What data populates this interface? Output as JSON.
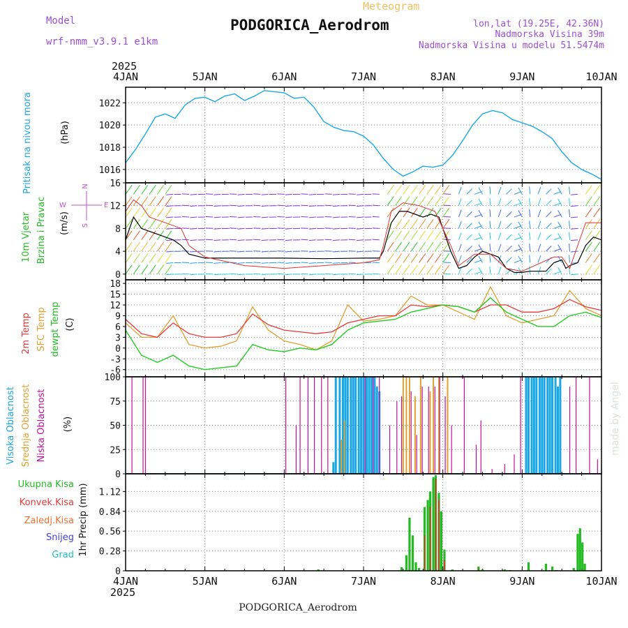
{
  "header": {
    "model_label": "Model",
    "model_name": "wrf-nmm_v3.9.1 e1km",
    "meteogram_label": "Meteogram",
    "station": "PODGORICA_Aerodrom",
    "lonlat": "lon,lat (19.25E, 42.36N)",
    "elevation": "Nadmorska Visina 39m",
    "model_elevation": "Nadmorska Visina u modelu 51.5474m"
  },
  "x_axis": {
    "year": "2025",
    "ticks": [
      "4JAN",
      "5JAN",
      "6JAN",
      "7JAN",
      "8JAN",
      "9JAN",
      "10JAN"
    ]
  },
  "footer": {
    "station": "PODGORICA_Aerodrom",
    "credit": "made by Angel"
  },
  "colors": {
    "pressure": "#1aa7e6",
    "wind_speed": "#000000",
    "gust": "#e03030",
    "t2m": "#e83838",
    "sfc": "#e0a030",
    "dewpt": "#22cc22",
    "high_cloud": "#1aa7e6",
    "mid_cloud": "#e0a030",
    "low_cloud": "#c0109a",
    "total_precip": "#22bb22",
    "conv_precip": "#e03030"
  },
  "chart_data": [
    {
      "type": "line",
      "ylabel": "Pritisak na nivou mora",
      "units": "(hPa)",
      "yticks": [
        1016,
        1018,
        1020,
        1022
      ],
      "ylim": [
        1014.8,
        1023.4
      ],
      "series": [
        {
          "name": "Pritisak na nivou mora",
          "x": [
            0,
            0.125,
            0.25,
            0.375,
            0.5,
            0.625,
            0.75,
            0.875,
            1,
            1.125,
            1.25,
            1.375,
            1.5,
            1.625,
            1.75,
            1.875,
            2,
            2.125,
            2.25,
            2.375,
            2.5,
            2.625,
            2.75,
            2.875,
            3,
            3.125,
            3.25,
            3.375,
            3.5,
            3.625,
            3.75,
            3.875,
            4,
            4.125,
            4.25,
            4.375,
            4.5,
            4.625,
            4.75,
            4.875,
            5,
            5.125,
            5.25,
            5.375,
            5.5,
            5.625,
            5.75,
            5.875,
            6
          ],
          "y": [
            1016.6,
            1017.8,
            1019.2,
            1020.7,
            1021.0,
            1020.6,
            1021.8,
            1022.4,
            1022.5,
            1022.1,
            1022.6,
            1022.8,
            1022.2,
            1022.6,
            1023.1,
            1023.0,
            1022.9,
            1022.4,
            1022.5,
            1021.6,
            1020.3,
            1019.8,
            1019.5,
            1019.4,
            1019.0,
            1018.2,
            1017.0,
            1016.0,
            1015.4,
            1015.8,
            1016.3,
            1016.2,
            1016.4,
            1017.3,
            1018.6,
            1020.0,
            1021.0,
            1021.3,
            1021.1,
            1020.5,
            1020.2,
            1019.9,
            1019.4,
            1018.8,
            1017.6,
            1016.6,
            1016.0,
            1015.6,
            1015.1
          ]
        }
      ]
    },
    {
      "type": "line",
      "ylabel": "10m Vjetar Brzina i Pravac",
      "units": "(m/s)",
      "yticks": [
        0,
        4,
        8,
        12,
        16
      ],
      "ylim": [
        -1,
        16
      ],
      "compass": {
        "n": "N",
        "s": "S",
        "e": "E",
        "w": "W"
      },
      "series": [
        {
          "name": "wind_speed",
          "x": [
            0,
            0.1,
            0.2,
            0.3,
            0.4,
            0.5,
            0.6,
            0.7,
            0.8,
            1,
            1.5,
            2,
            2.5,
            3,
            3.2,
            3.25,
            3.35,
            3.45,
            3.55,
            3.65,
            3.75,
            3.85,
            3.95,
            4.1,
            4.2,
            4.3,
            4.4,
            4.5,
            4.6,
            4.7,
            4.8,
            4.9,
            5,
            5.1,
            5.2,
            5.3,
            5.4,
            5.5,
            5.55,
            5.6,
            5.7,
            5.8,
            5.9,
            6
          ],
          "y": [
            6,
            10,
            8,
            7.5,
            7,
            6.5,
            6,
            5,
            3.5,
            2.8,
            2.8,
            2.8,
            2.7,
            2.8,
            2.8,
            4,
            9,
            11,
            11,
            10.5,
            10,
            10.5,
            10,
            4,
            1,
            1.5,
            3,
            4,
            3.5,
            3,
            1,
            0.3,
            0.3,
            0.5,
            0.5,
            0.5,
            2,
            2.5,
            1,
            1.5,
            2,
            5,
            6.5,
            6
          ]
        },
        {
          "name": "gust",
          "x": [
            0,
            0.1,
            0.2,
            0.3,
            0.5,
            0.7,
            0.8,
            1,
            1.5,
            2,
            2.5,
            3,
            3.2,
            3.25,
            3.35,
            3.5,
            3.7,
            3.9,
            4.1,
            4.2,
            4.4,
            4.6,
            4.8,
            5,
            5.4,
            5.5,
            5.6,
            5.8,
            6
          ],
          "y": [
            11,
            13,
            12,
            10,
            9,
            8,
            5,
            3,
            1.5,
            1,
            1.5,
            2,
            2.5,
            5,
            11,
            12.5,
            12,
            11,
            5,
            1.5,
            3.5,
            3.5,
            1,
            0.5,
            3,
            3,
            1,
            9,
            9
          ]
        }
      ]
    },
    {
      "type": "line",
      "ylabel": "2m Temp / SFC Temp / dewpt Temp",
      "units": "(C)",
      "yticks": [
        -6,
        -3,
        0,
        3,
        6,
        9,
        12,
        15,
        18
      ],
      "ylim": [
        -8,
        19
      ],
      "series": [
        {
          "name": "2m Temp",
          "x": [
            0,
            0.2,
            0.4,
            0.6,
            0.8,
            1,
            1.2,
            1.4,
            1.6,
            1.8,
            2,
            2.2,
            2.4,
            2.6,
            2.8,
            3,
            3.2,
            3.4,
            3.6,
            3.8,
            4,
            4.2,
            4.4,
            4.6,
            4.8,
            5,
            5.2,
            5.4,
            5.6,
            5.8,
            6
          ],
          "y": [
            8,
            4,
            3,
            7,
            4,
            3,
            3,
            4,
            9.5,
            6.5,
            5,
            4.5,
            4,
            4.5,
            7,
            8,
            9,
            9,
            12,
            11.5,
            12,
            11.5,
            10,
            12,
            12,
            10,
            10,
            11,
            13.5,
            11.5,
            10.5
          ]
        },
        {
          "name": "SFC Temp",
          "x": [
            0,
            0.2,
            0.4,
            0.6,
            0.8,
            1,
            1.2,
            1.4,
            1.6,
            1.8,
            2,
            2.2,
            2.4,
            2.6,
            2.8,
            3,
            3.2,
            3.4,
            3.6,
            3.8,
            4,
            4.2,
            4.4,
            4.6,
            4.8,
            5,
            5.2,
            5.4,
            5.6,
            5.8,
            6
          ],
          "y": [
            7,
            3,
            3,
            9,
            1,
            0,
            0.5,
            2,
            11.5,
            5,
            2,
            1,
            -0.5,
            2,
            12,
            7.5,
            8,
            9,
            14.5,
            12,
            12,
            10,
            8,
            17,
            9,
            7,
            8,
            9,
            16,
            11,
            9
          ]
        },
        {
          "name": "dewpt Temp",
          "x": [
            0,
            0.2,
            0.4,
            0.6,
            0.8,
            1,
            1.2,
            1.4,
            1.6,
            1.8,
            2,
            2.2,
            2.4,
            2.6,
            2.8,
            3,
            3.2,
            3.4,
            3.6,
            3.8,
            4,
            4.2,
            4.4,
            4.6,
            4.8,
            5,
            5.2,
            5.4,
            5.6,
            5.8,
            6
          ],
          "y": [
            5,
            -2,
            -4,
            -2,
            -5,
            -6,
            -5.5,
            -5,
            1,
            -0.5,
            -1,
            0,
            -0.5,
            1,
            5,
            7,
            7.5,
            8,
            10,
            11,
            12,
            11.5,
            10,
            14,
            10,
            8,
            6,
            6,
            9,
            10,
            8.5
          ]
        }
      ]
    },
    {
      "type": "bar",
      "ylabel": "Visoka Oblacnost / Srednja Oblacnost / Niska Oblacnost",
      "units": "(%)",
      "yticks": [
        0,
        25,
        50,
        75,
        100
      ],
      "ylim": [
        0,
        100
      ],
      "series": [
        {
          "name": "Visoka Oblacnost",
          "x": [
            2.62,
            2.65,
            2.7,
            2.74,
            2.77,
            2.8,
            2.84,
            2.87,
            2.9,
            2.94,
            2.97,
            3.0,
            3.04,
            3.07,
            3.1,
            3.14,
            3.17,
            3.2,
            5.05,
            5.08,
            5.12,
            5.15,
            5.18,
            5.22,
            5.25,
            5.28,
            5.32,
            5.35,
            5.38,
            5.42,
            5.45,
            5.48
          ],
          "y": [
            12,
            100,
            100,
            100,
            100,
            100,
            100,
            100,
            100,
            100,
            100,
            100,
            100,
            100,
            100,
            100,
            90,
            85,
            100,
            100,
            100,
            100,
            100,
            100,
            100,
            100,
            100,
            100,
            100,
            100,
            90,
            100
          ]
        },
        {
          "name": "Srednja Oblacnost",
          "x": [
            2.72,
            2.76,
            3.5,
            3.54,
            3.58,
            3.65,
            3.72,
            3.84,
            3.88,
            3.95,
            4.06
          ],
          "y": [
            35,
            55,
            100,
            100,
            100,
            80,
            100,
            85,
            100,
            100,
            100
          ]
        },
        {
          "name": "Niska Oblacnost",
          "x": [
            0.08,
            0.22,
            0.25,
            2.02,
            2.15,
            2.2,
            2.3,
            2.38,
            2.47,
            2.55,
            3.02,
            3.12,
            3.2,
            3.33,
            3.42,
            3.48,
            3.6,
            3.67,
            3.74,
            3.82,
            3.9,
            3.96,
            4.03,
            4.11,
            4.27,
            4.42,
            4.48,
            4.62,
            4.78,
            4.9,
            4.98,
            5.6,
            5.68,
            5.85,
            5.95,
            6.0
          ],
          "y": [
            100,
            100,
            100,
            100,
            50,
            100,
            100,
            100,
            100,
            100,
            100,
            100,
            100,
            50,
            75,
            80,
            85,
            40,
            90,
            90,
            90,
            100,
            80,
            50,
            100,
            30,
            55,
            5,
            10,
            20,
            100,
            90,
            100,
            100,
            15,
            10
          ]
        }
      ]
    },
    {
      "type": "bar",
      "ylabel": "1hr Precip (mm)",
      "legend": [
        "Ukupna Kisa",
        "Konvek.Kisa",
        "Zaledj.Kisa",
        "Snijeg",
        "Grad"
      ],
      "yticks": [
        0,
        0.28,
        0.56,
        0.84,
        1.12
      ],
      "ylim": [
        0,
        1.37
      ],
      "series": [
        {
          "name": "Ukupna Kisa",
          "x": [
            2.43,
            3.48,
            3.54,
            3.58,
            3.62,
            3.66,
            3.7,
            3.77,
            3.81,
            3.84,
            3.88,
            3.91,
            3.95,
            3.98,
            4.02,
            4.12,
            4.45,
            4.5,
            4.78,
            4.85,
            5.08,
            5.3,
            5.38,
            5.43,
            5.65,
            5.7,
            5.73,
            5.76,
            5.79
          ],
          "y": [
            0.02,
            0.05,
            0.22,
            0.75,
            0.5,
            0.12,
            0.04,
            0.9,
            1.0,
            1.12,
            1.32,
            1.35,
            1.1,
            0.84,
            0.3,
            0.02,
            0.06,
            0.02,
            0.02,
            0.01,
            0.12,
            0.1,
            0.06,
            0.01,
            0.04,
            0.52,
            0.6,
            0.4,
            0.1
          ]
        },
        {
          "name": "Konvek.Kisa",
          "x": [
            3.77,
            3.84,
            3.91,
            3.95,
            4.02,
            4.45
          ],
          "y": [
            0.5,
            0.9,
            1.3,
            1.0,
            0.15,
            0.03
          ]
        }
      ]
    }
  ]
}
